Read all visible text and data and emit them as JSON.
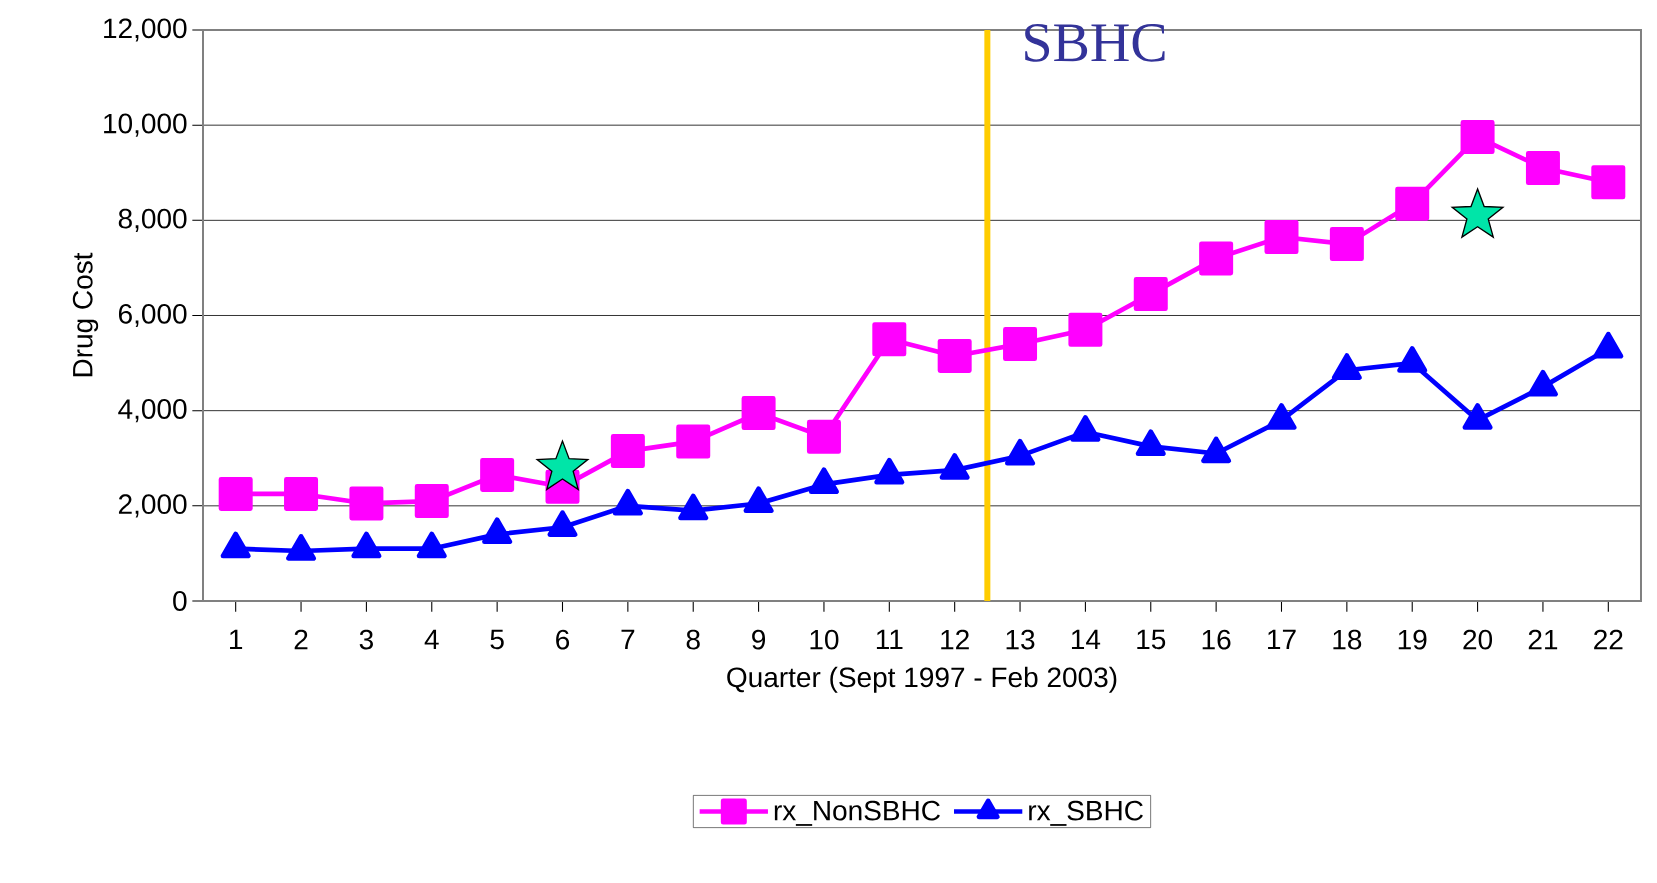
{
  "chart_data": {
    "type": "line",
    "xlabel": "Quarter (Sept 1997 - Feb 2003)",
    "ylabel": "Drug Cost",
    "x": [
      1,
      2,
      3,
      4,
      5,
      6,
      7,
      8,
      9,
      10,
      11,
      12,
      13,
      14,
      15,
      16,
      17,
      18,
      19,
      20,
      21,
      22
    ],
    "xlim": [
      0.5,
      22.5
    ],
    "xticks": [
      1,
      2,
      3,
      4,
      5,
      6,
      7,
      8,
      9,
      10,
      11,
      12,
      13,
      14,
      15,
      16,
      17,
      18,
      19,
      20,
      21,
      22
    ],
    "ylim": [
      0,
      12000
    ],
    "yticks": [
      {
        "value": 0,
        "label": "0"
      },
      {
        "value": 2000,
        "label": "2,000"
      },
      {
        "value": 4000,
        "label": "4,000"
      },
      {
        "value": 6000,
        "label": "6,000"
      },
      {
        "value": 8000,
        "label": "8,000"
      },
      {
        "value": 10000,
        "label": "10,000"
      },
      {
        "value": 12000,
        "label": "12,000"
      }
    ],
    "grid": "y",
    "legend": "bottom",
    "line_style": "solid",
    "series": [
      {
        "name": "rx_NonSBHC",
        "color": "#ff00ff",
        "marker": "square",
        "values": [
          2250,
          2250,
          2050,
          2100,
          2650,
          2400,
          3150,
          3350,
          3950,
          3450,
          5500,
          5150,
          5400,
          5700,
          6450,
          7200,
          7650,
          7500,
          8350,
          9750,
          9100,
          8800
        ]
      },
      {
        "name": "rx_SBHC",
        "color": "#0000ff",
        "marker": "triangle",
        "values": [
          1100,
          1050,
          1100,
          1100,
          1400,
          1550,
          2000,
          1900,
          2050,
          2450,
          2650,
          2750,
          3050,
          3550,
          3250,
          3100,
          3800,
          4850,
          5000,
          3800,
          4500,
          5300
        ]
      },
      {
        "type": "scatter",
        "color": "#00e5a8",
        "marker": "star",
        "x": [
          6,
          20
        ],
        "values": [
          2800,
          8100
        ]
      }
    ],
    "ref_lines": [
      {
        "axis": "x",
        "value": 12.5,
        "label": "SBHC",
        "color": "#ffcc00"
      }
    ]
  }
}
